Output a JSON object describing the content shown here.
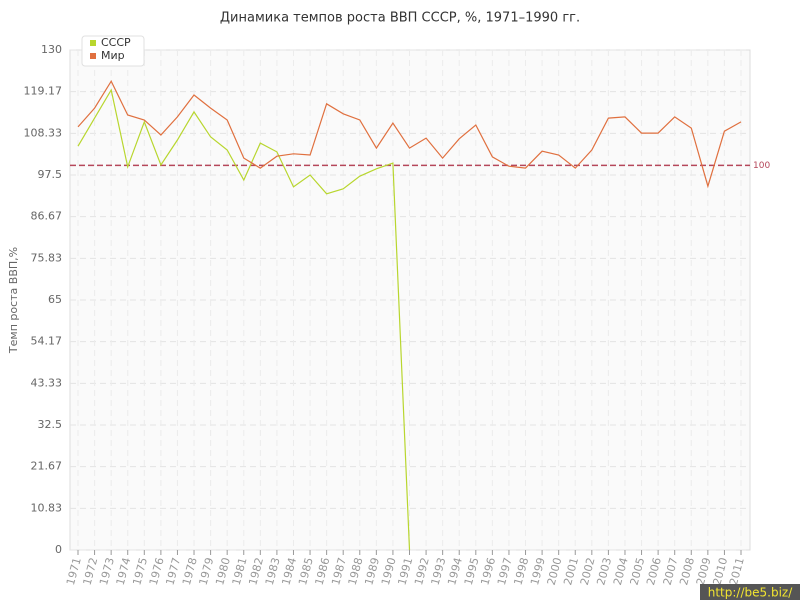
{
  "chart_data": {
    "type": "line",
    "title": "Динамика темпов роста ВВП СССР, %, 1971–1990 гг.",
    "y_label": "Темп роста ВВП,%",
    "categories": [
      "1971",
      "1972",
      "1973",
      "1974",
      "1975",
      "1976",
      "1977",
      "1978",
      "1979",
      "1980",
      "1981",
      "1982",
      "1983",
      "1984",
      "1985",
      "1986",
      "1987",
      "1988",
      "1989",
      "1990",
      "1991",
      "1992",
      "1993",
      "1994",
      "1995",
      "1996",
      "1997",
      "1998",
      "1999",
      "2000",
      "2001",
      "2002",
      "2003",
      "2004",
      "2005",
      "2006",
      "2007",
      "2008",
      "2009",
      "2010",
      "2011"
    ],
    "series": [
      {
        "name": "СССР",
        "color": "#b8d62e",
        "values": [
          105,
          112.3,
          119.6,
          99.6,
          111.3,
          100.1,
          106.6,
          113.9,
          107.4,
          104,
          96.2,
          105.8,
          103.5,
          94.4,
          97.5,
          92.6,
          93.9,
          97.2,
          99.1,
          100.6,
          0,
          null,
          null,
          null,
          null,
          null,
          null,
          null,
          null,
          null,
          null,
          null,
          null,
          null,
          null,
          null,
          null,
          null,
          null,
          null,
          null
        ]
      },
      {
        "name": "Мир",
        "color": "#e0703f",
        "values": [
          110,
          114.9,
          121.9,
          113.1,
          111.8,
          107.9,
          112.6,
          118.3,
          114.9,
          111.8,
          101.9,
          99.3,
          102.4,
          103,
          102.7,
          116,
          113.4,
          111.8,
          104.5,
          111,
          104.5,
          107.1,
          101.9,
          106.9,
          110.5,
          102.2,
          99.8,
          99.3,
          103.7,
          102.7,
          99.3,
          104,
          112.3,
          112.6,
          108.4,
          108.4,
          112.6,
          109.7,
          94.6,
          108.9,
          111.3
        ]
      }
    ],
    "reference_line": 100,
    "reference_color": "#b5475a",
    "ylim": [
      0,
      130
    ],
    "yticks": [
      0,
      10.83,
      21.67,
      32.5,
      43.33,
      54.17,
      65,
      75.83,
      86.67,
      97.5,
      108.33,
      119.17,
      130
    ],
    "grid": true,
    "legend": "top-left",
    "watermark": "http://be5.biz/"
  }
}
